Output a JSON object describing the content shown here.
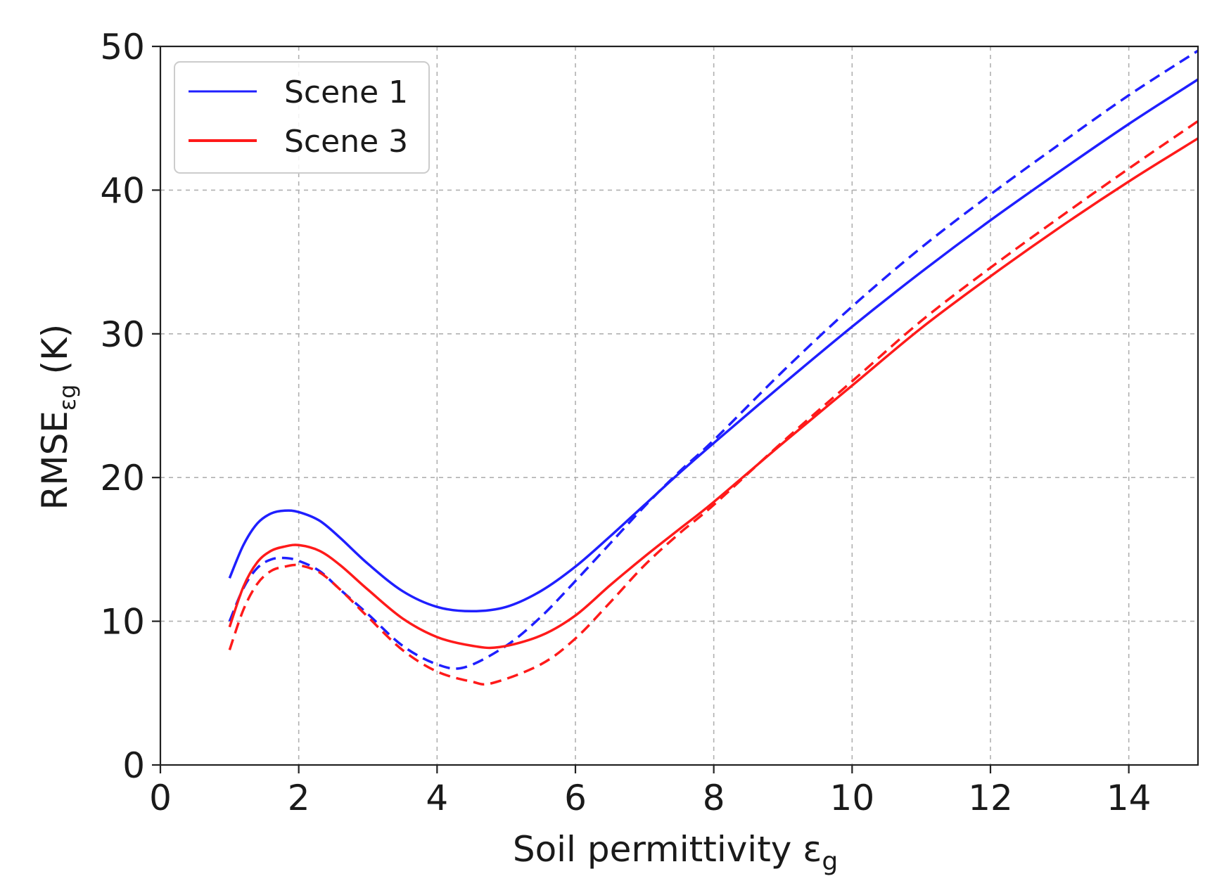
{
  "chart_data": {
    "type": "line",
    "xlabel_main": "Soil permittivity ε",
    "xlabel_sub": "g",
    "ylabel_main": "RMSE",
    "ylabel_sub": "εg",
    "ylabel_unit": "(K)",
    "xlim": [
      0,
      15
    ],
    "ylim": [
      0,
      50
    ],
    "xticks": [
      0,
      2,
      4,
      6,
      8,
      10,
      12,
      14
    ],
    "yticks": [
      0,
      10,
      20,
      30,
      40,
      50
    ],
    "grid": true,
    "legend_position": "top-left",
    "legend": [
      {
        "label": "Scene 1",
        "color": "#1f1fff"
      },
      {
        "label": "Scene 3",
        "color": "#ff1a1a"
      }
    ],
    "series": [
      {
        "legend_index": 0,
        "color": "#1f1fff",
        "style": "solid",
        "x": [
          1.0,
          1.2,
          1.4,
          1.6,
          1.8,
          2.0,
          2.3,
          2.6,
          3.0,
          3.5,
          4.0,
          4.5,
          5.0,
          5.5,
          6.0,
          6.5,
          7.0,
          7.5,
          8.0,
          9.0,
          10.0,
          11.0,
          12.0,
          13.0,
          14.0,
          15.0
        ],
        "y": [
          13.0,
          15.3,
          16.8,
          17.5,
          17.7,
          17.6,
          17.0,
          15.8,
          14.0,
          12.1,
          11.0,
          10.7,
          11.0,
          12.1,
          13.8,
          15.9,
          18.1,
          20.3,
          22.4,
          26.5,
          30.5,
          34.3,
          37.9,
          41.3,
          44.6,
          47.7
        ]
      },
      {
        "legend_index": -1,
        "color": "#1f1fff",
        "style": "dashed",
        "x": [
          1.0,
          1.2,
          1.4,
          1.6,
          1.8,
          2.0,
          2.3,
          2.6,
          3.0,
          3.5,
          4.0,
          4.4,
          5.0,
          5.5,
          6.0,
          6.5,
          7.0,
          7.5,
          8.0,
          9.0,
          10.0,
          11.0,
          12.0,
          13.0,
          14.0,
          15.0
        ],
        "y": [
          10.0,
          12.3,
          13.7,
          14.3,
          14.4,
          14.2,
          13.5,
          12.2,
          10.5,
          8.3,
          7.0,
          6.8,
          8.3,
          10.3,
          12.8,
          15.4,
          18.0,
          20.4,
          22.6,
          27.4,
          31.9,
          36.0,
          39.7,
          43.2,
          46.6,
          49.7
        ]
      },
      {
        "legend_index": 1,
        "color": "#ff1a1a",
        "style": "solid",
        "x": [
          1.0,
          1.2,
          1.4,
          1.6,
          1.8,
          2.0,
          2.3,
          2.6,
          3.0,
          3.5,
          4.0,
          4.5,
          4.9,
          5.5,
          6.0,
          6.5,
          7.0,
          7.5,
          8.0,
          9.0,
          10.0,
          11.0,
          12.0,
          13.0,
          14.0,
          15.0
        ],
        "y": [
          9.6,
          12.4,
          14.1,
          14.9,
          15.2,
          15.3,
          14.9,
          13.9,
          12.2,
          10.2,
          8.9,
          8.3,
          8.2,
          9.0,
          10.4,
          12.5,
          14.5,
          16.4,
          18.3,
          22.4,
          26.4,
          30.4,
          34.0,
          37.4,
          40.6,
          43.6
        ]
      },
      {
        "legend_index": -1,
        "color": "#ff1a1a",
        "style": "dashed",
        "x": [
          1.0,
          1.2,
          1.4,
          1.6,
          1.8,
          2.0,
          2.3,
          2.6,
          3.0,
          3.5,
          4.0,
          4.5,
          4.8,
          5.5,
          6.0,
          6.5,
          7.0,
          7.5,
          8.0,
          9.0,
          10.0,
          11.0,
          12.0,
          13.0,
          14.0,
          15.0
        ],
        "y": [
          8.0,
          10.8,
          12.6,
          13.5,
          13.8,
          13.9,
          13.4,
          12.2,
          10.3,
          8.0,
          6.5,
          5.8,
          5.7,
          7.0,
          8.8,
          11.3,
          13.9,
          16.1,
          18.1,
          22.5,
          26.7,
          30.9,
          34.6,
          38.1,
          41.5,
          44.8
        ]
      }
    ]
  }
}
